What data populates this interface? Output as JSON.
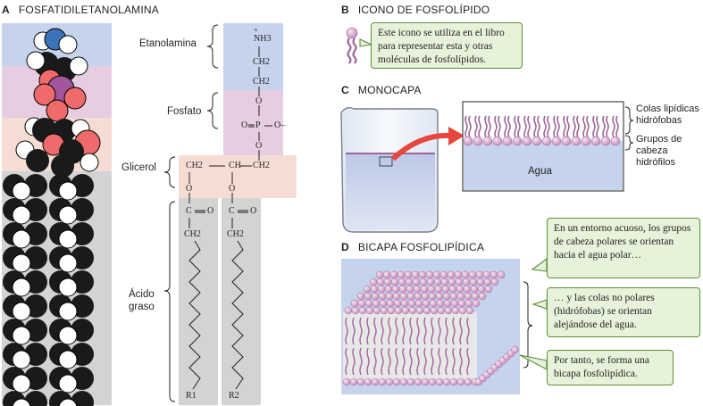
{
  "panelA": {
    "letter": "A",
    "title": "FOSFATIDILETANOLAMINA",
    "labels": {
      "etanolamina": "Etanolamina",
      "fosfato": "Fosfato",
      "glicerol": "Glicerol",
      "acido": "Ácido",
      "graso": "graso"
    },
    "chem": {
      "nh3": "NH3",
      "plus": "+",
      "ch2": "CH2",
      "o": "O",
      "p": "P",
      "ominus": "O–",
      "ch": "CH",
      "c": "C",
      "r1": "R1",
      "r2": "R2"
    },
    "colors": {
      "ethanolamine_band": "#c5d3ec",
      "phosphate_band": "#e6cde2",
      "glycerol_band": "#f6ddd4",
      "fatty_band": "#d1d3d4",
      "nitrogen": "#3b73b9",
      "oxygen": "#ef6b6b",
      "phosphorus": "#a1559c"
    }
  },
  "panelB": {
    "letter": "B",
    "title": "ICONO DE FOSFOLÍPIDO",
    "callout": "Este icono se utiliza en el libro para representar esta y otras moléculas de fosfolípidos."
  },
  "panelC": {
    "letter": "C",
    "title": "MONOCAPA",
    "water": "Agua",
    "tails_label": "Colas lipídicas hidrófobas",
    "heads_label": "Grupos de cabeza hidrófilos"
  },
  "panelD": {
    "letter": "D",
    "title": "BICAPA FOSFOLIPÍDICA",
    "callouts": [
      "En un entorno acuoso, los grupos de cabeza polares se orientan hacia el agua polar…",
      "… y las colas no polares (hidrófobas) se orientan alejándose del agua.",
      "Por tanto, se forma una bicapa fosfolipídica."
    ]
  }
}
